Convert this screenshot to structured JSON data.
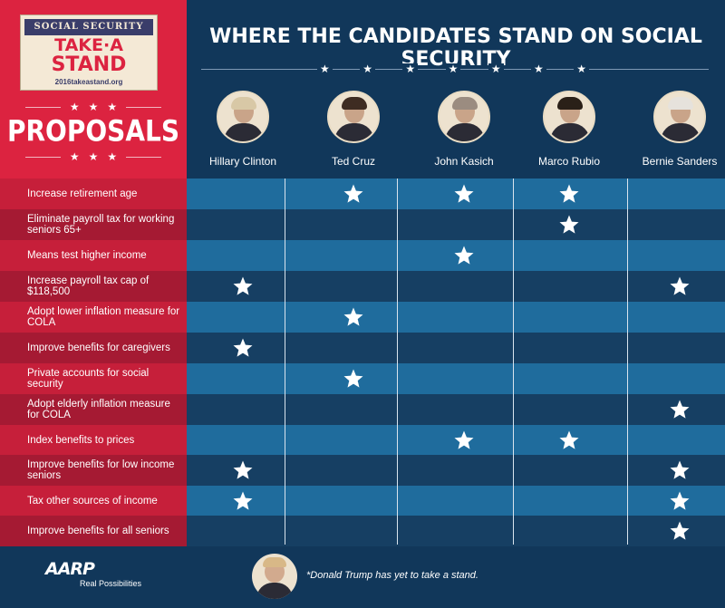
{
  "logo": {
    "banner": "SOCIAL SECURITY",
    "line1": "TAKE·A",
    "line2": "STAND",
    "url": "2016takeastand.org"
  },
  "header": {
    "title": "WHERE THE CANDIDATES STAND ON SOCIAL SECURITY"
  },
  "sidebar": {
    "title": "PROPOSALS"
  },
  "candidates": [
    {
      "name": "Hillary Clinton",
      "hair": "#d8c8a6"
    },
    {
      "name": "Ted Cruz",
      "hair": "#3e2c22"
    },
    {
      "name": "John Kasich",
      "hair": "#9b8c80"
    },
    {
      "name": "Marco Rubio",
      "hair": "#2a2018"
    },
    {
      "name": "Bernie Sanders",
      "hair": "#e6e2dc"
    }
  ],
  "proposals": [
    {
      "label": "Increase retirement age",
      "stars": [
        1,
        2,
        3
      ]
    },
    {
      "label": "Eliminate payroll tax for working seniors 65+",
      "stars": [
        3
      ]
    },
    {
      "label": "Means test higher income",
      "stars": [
        2
      ]
    },
    {
      "label": "Increase payroll tax cap of $118,500",
      "stars": [
        0,
        4
      ]
    },
    {
      "label": "Adopt lower inflation measure for COLA",
      "stars": [
        1
      ]
    },
    {
      "label": "Improve benefits for caregivers",
      "stars": [
        0
      ]
    },
    {
      "label": "Private accounts for social security",
      "stars": [
        1
      ]
    },
    {
      "label": "Adopt elderly inflation measure for COLA",
      "stars": [
        4
      ]
    },
    {
      "label": "Index benefits to prices",
      "stars": [
        2,
        3
      ]
    },
    {
      "label": "Improve benefits for low income seniors",
      "stars": [
        0,
        4
      ]
    },
    {
      "label": "Tax other sources of income",
      "stars": [
        0,
        4
      ]
    },
    {
      "label": "Improve benefits for all seniors",
      "stars": [
        4
      ]
    }
  ],
  "footer": {
    "aarp_logo": "AARP",
    "aarp_tagline": "Real Possibilities",
    "footnote": "*Donald Trump has yet to take a stand."
  },
  "colors": {
    "red": "#dc2340",
    "navy": "#11375a",
    "row_light": "#1f6c9d",
    "row_dark": "#163f63"
  }
}
